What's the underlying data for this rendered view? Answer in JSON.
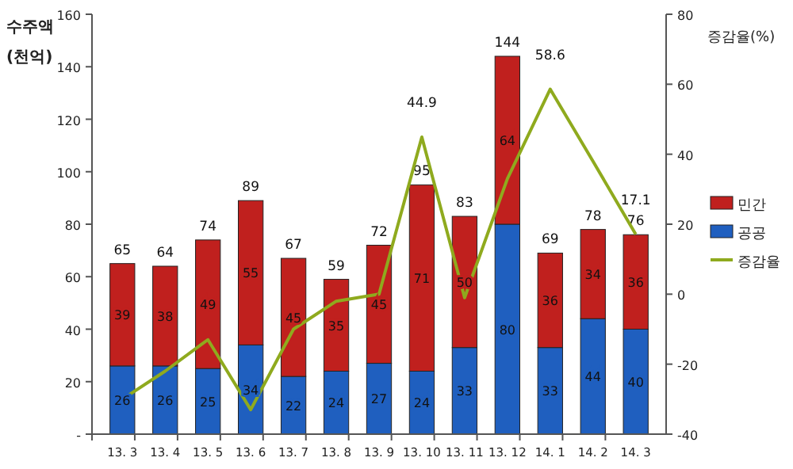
{
  "chart_data": {
    "type": "bar",
    "stacked": true,
    "ylabel": "수주액 (천억)",
    "y2label": "증감율(%)",
    "categories": [
      "13. 3",
      "13. 4",
      "13. 5",
      "13. 6",
      "13. 7",
      "13. 8",
      "13. 9",
      "13. 10",
      "13. 11",
      "13. 12",
      "14. 1",
      "14. 2",
      "14. 3"
    ],
    "series": [
      {
        "name": "공공",
        "color": "#1f5fbf",
        "values": [
          26,
          26,
          25,
          34,
          22,
          24,
          27,
          24,
          33,
          80,
          33,
          44,
          40
        ]
      },
      {
        "name": "민간",
        "color": "#c0201e",
        "values": [
          39,
          38,
          49,
          55,
          45,
          35,
          45,
          71,
          50,
          64,
          36,
          34,
          36
        ]
      },
      {
        "name": "증감율",
        "type": "line",
        "axis": "y2",
        "color": "#8faa1e",
        "values": [
          -30,
          -22,
          -13,
          -33,
          -10,
          -2,
          0,
          44.9,
          -1,
          33,
          58.6,
          38,
          17.1
        ],
        "value_labels": [
          null,
          null,
          null,
          null,
          null,
          null,
          null,
          "44.9",
          null,
          null,
          "58.6",
          null,
          "17.1"
        ]
      }
    ],
    "data_labels": true,
    "totals": [
      "65",
      "64",
      "74",
      "89",
      "67",
      "59",
      "72",
      "95",
      "83",
      "144",
      "69",
      "78",
      "76"
    ],
    "ylim": [
      0,
      160
    ],
    "yticks": [
      {
        "value": 0,
        "label": "-"
      },
      20,
      40,
      60,
      80,
      100,
      120,
      140,
      160
    ],
    "y2lim": [
      -40,
      80
    ],
    "y2ticks": [
      -40,
      -20,
      0,
      20,
      40,
      60,
      80
    ],
    "legend": "right"
  }
}
